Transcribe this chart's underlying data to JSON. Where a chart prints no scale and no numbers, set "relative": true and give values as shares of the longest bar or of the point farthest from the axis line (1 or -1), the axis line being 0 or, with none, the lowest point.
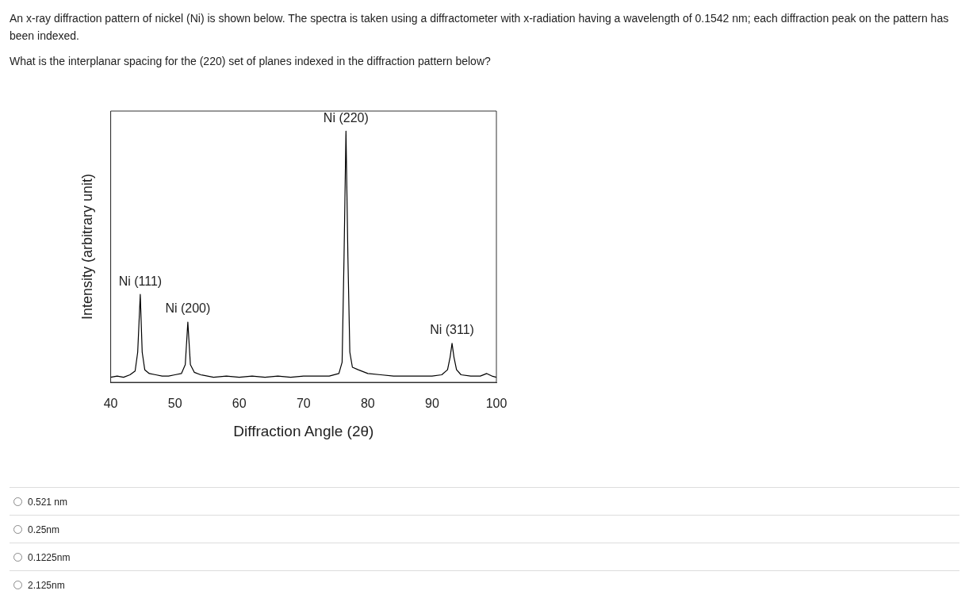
{
  "chart_data": {
    "type": "line",
    "title": "An x-ray diffraction pattern of nickel (Ni) is shown below. The spectra is taken using a diffractometer with x-radiation having a wavelength of 0.1542 nm; each diffraction peak on the pattern has been indexed.",
    "subtitle": "What is the interplanar spacing for the (220) set of planes indexed in the diffraction pattern below?",
    "xlabel": "Diffraction Angle (2θ)",
    "ylabel": "Intensity (arbitrary unit)",
    "relative": true,
    "xlim": [
      40,
      100
    ],
    "xticks": [
      40,
      50,
      60,
      70,
      80,
      90,
      100
    ],
    "series": [
      {
        "color": "#000000",
        "x": [
          40,
          41,
          42,
          43,
          43.8,
          44.2,
          44.6,
          44.9,
          45.3,
          46,
          47,
          48,
          49,
          50,
          51,
          51.6,
          52,
          52.4,
          53,
          54,
          56,
          58,
          60,
          62,
          64,
          66,
          68,
          70,
          72,
          74,
          75.5,
          76,
          76.3,
          76.6,
          76.9,
          77.2,
          77.6,
          78.5,
          80,
          82,
          84,
          86,
          88,
          90,
          91.5,
          92.4,
          92.8,
          93.1,
          93.4,
          93.8,
          94.5,
          96,
          97.5,
          98.5,
          99.3,
          100
        ],
        "values": [
          0.02,
          0.025,
          0.02,
          0.03,
          0.045,
          0.12,
          0.35,
          0.12,
          0.05,
          0.035,
          0.03,
          0.025,
          0.025,
          0.03,
          0.035,
          0.07,
          0.24,
          0.07,
          0.04,
          0.03,
          0.02,
          0.025,
          0.02,
          0.025,
          0.02,
          0.025,
          0.02,
          0.025,
          0.025,
          0.025,
          0.035,
          0.08,
          0.5,
          1,
          0.5,
          0.12,
          0.06,
          0.05,
          0.035,
          0.03,
          0.025,
          0.025,
          0.025,
          0.025,
          0.03,
          0.05,
          0.1,
          0.155,
          0.1,
          0.05,
          0.03,
          0.025,
          0.025,
          0.035,
          0.025,
          0.02
        ]
      }
    ],
    "annotations": [
      {
        "text": "Ni (111)",
        "x": 44.6,
        "y": 0.35
      },
      {
        "text": "Ni (200)",
        "x": 52,
        "y": 0.24
      },
      {
        "text": "Ni (220)",
        "x": 76.6,
        "y": 1
      },
      {
        "text": "Ni (311)",
        "x": 93.1,
        "y": 0.155
      },
      "0.521 nm",
      "0.25nm",
      "0.1225nm",
      "2.125nm"
    ]
  }
}
